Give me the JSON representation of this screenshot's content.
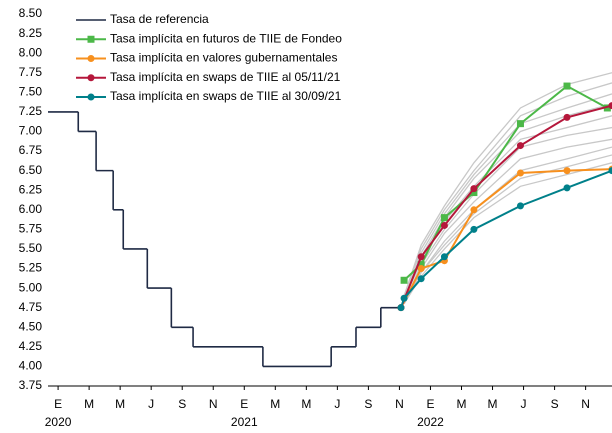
{
  "chart_data": {
    "type": "line",
    "legend_position": "upper left",
    "xlim": [
      -0.65,
      35.7
    ],
    "ylim": [
      3.75,
      8.5
    ],
    "yticks": [
      {
        "value": 3.75,
        "label": "3.75"
      },
      {
        "value": 4.0,
        "label": "4.00"
      },
      {
        "value": 4.25,
        "label": "4.25"
      },
      {
        "value": 4.5,
        "label": "4.50"
      },
      {
        "value": 4.75,
        "label": "4.75"
      },
      {
        "value": 5.0,
        "label": "5.00"
      },
      {
        "value": 5.25,
        "label": "5.25"
      },
      {
        "value": 5.5,
        "label": "5.50"
      },
      {
        "value": 5.75,
        "label": "5.75"
      },
      {
        "value": 6.0,
        "label": "6.00"
      },
      {
        "value": 6.25,
        "label": "6.25"
      },
      {
        "value": 6.5,
        "label": "6.50"
      },
      {
        "value": 6.75,
        "label": "6.75"
      },
      {
        "value": 7.0,
        "label": "7.00"
      },
      {
        "value": 7.25,
        "label": "7.25"
      },
      {
        "value": 7.5,
        "label": "7.50"
      },
      {
        "value": 7.75,
        "label": "7.75"
      },
      {
        "value": 8.0,
        "label": "8.00"
      },
      {
        "value": 8.25,
        "label": "8.25"
      },
      {
        "value": 8.5,
        "label": "8.50"
      }
    ],
    "xticks": [
      {
        "value": 0,
        "label": "E"
      },
      {
        "value": 2,
        "label": "M"
      },
      {
        "value": 4,
        "label": "M"
      },
      {
        "value": 6,
        "label": "J"
      },
      {
        "value": 8,
        "label": "S"
      },
      {
        "value": 10,
        "label": "N"
      },
      {
        "value": 12,
        "label": "E"
      },
      {
        "value": 14,
        "label": "M"
      },
      {
        "value": 16,
        "label": "M"
      },
      {
        "value": 18,
        "label": "J"
      },
      {
        "value": 20,
        "label": "S"
      },
      {
        "value": 22,
        "label": "N"
      },
      {
        "value": 24,
        "label": "E"
      },
      {
        "value": 26,
        "label": "M"
      },
      {
        "value": 28,
        "label": "M"
      },
      {
        "value": 30,
        "label": "J"
      },
      {
        "value": 32,
        "label": "S"
      },
      {
        "value": 34,
        "label": "N"
      }
    ],
    "xtick_years": [
      {
        "value": 0,
        "label": "2020"
      },
      {
        "value": 12,
        "label": "2021"
      },
      {
        "value": 24,
        "label": "2022"
      }
    ],
    "series": [
      {
        "name": "Tasa de referencia",
        "color": "#1f2a44",
        "step": "post",
        "x": [
          -0.65,
          1.3,
          2.45,
          3.55,
          4.2,
          5.75,
          7.3,
          8.7,
          13.2,
          17.6,
          19.2,
          20.8,
          22.1
        ],
        "values": [
          7.25,
          7.0,
          6.5,
          6.0,
          5.5,
          5.0,
          4.5,
          4.25,
          4.0,
          4.25,
          4.5,
          4.75,
          4.75
        ]
      },
      {
        "name": "Tasa implícita en futuros de TIIE de Fondeo",
        "color": "#4cb848",
        "marker": "square",
        "x": [
          22.3,
          23.4,
          24.9,
          26.8,
          29.8,
          32.8,
          35.4
        ],
        "values": [
          5.1,
          5.3,
          5.9,
          6.22,
          7.1,
          7.58,
          7.3
        ]
      },
      {
        "name": "Tasa implícita en valores gubernamentales",
        "color": "#f7901e",
        "marker": "circle",
        "x": [
          22.1,
          23.4,
          24.9,
          26.8,
          29.8,
          32.8,
          35.7
        ],
        "values": [
          4.75,
          5.25,
          5.35,
          6.0,
          6.47,
          6.5,
          6.52
        ]
      },
      {
        "name": "Tasa implícita en swaps de TIIE al 05/11/21",
        "color": "#b5173b",
        "marker": "circle",
        "x": [
          22.1,
          23.4,
          24.9,
          26.8,
          29.8,
          32.8,
          35.7
        ],
        "values": [
          4.75,
          5.4,
          5.8,
          6.27,
          6.82,
          7.18,
          7.33
        ]
      },
      {
        "name": "Tasa implícita en swaps de TIIE al 30/09/21",
        "color": "#00808a",
        "marker": "circle",
        "x": [
          22.1,
          22.3,
          23.4,
          24.9,
          26.8,
          29.8,
          32.8,
          35.7
        ],
        "values": [
          4.75,
          4.87,
          5.12,
          5.4,
          5.75,
          6.05,
          6.28,
          6.5
        ]
      }
    ],
    "fan_series": [
      {
        "color": "#c8c8c8",
        "x": [
          22.3,
          23.4,
          24.9,
          26.8,
          29.8,
          32.8,
          35.7
        ],
        "values": [
          4.9,
          5.55,
          6.05,
          6.6,
          7.3,
          7.6,
          7.75
        ]
      },
      {
        "color": "#c8c8c8",
        "x": [
          22.3,
          23.4,
          24.9,
          26.8,
          29.8,
          32.8,
          35.7
        ],
        "values": [
          4.9,
          5.5,
          6.0,
          6.5,
          7.2,
          7.45,
          7.62
        ]
      },
      {
        "color": "#c8c8c8",
        "x": [
          22.3,
          23.4,
          24.9,
          26.8,
          29.8,
          32.8,
          35.7
        ],
        "values": [
          4.85,
          5.45,
          5.95,
          6.45,
          7.1,
          7.3,
          7.48
        ]
      },
      {
        "color": "#c8c8c8",
        "x": [
          22.3,
          23.4,
          24.9,
          26.8,
          29.8,
          32.8,
          35.7
        ],
        "values": [
          4.85,
          5.4,
          5.9,
          6.4,
          7.0,
          7.2,
          7.35
        ]
      },
      {
        "color": "#c8c8c8",
        "x": [
          22.3,
          23.4,
          24.9,
          26.8,
          29.8,
          32.8,
          35.7
        ],
        "values": [
          4.85,
          5.35,
          5.85,
          6.3,
          6.9,
          7.05,
          7.2
        ]
      },
      {
        "color": "#c8c8c8",
        "x": [
          22.3,
          23.4,
          24.9,
          26.8,
          29.8,
          32.8,
          35.7
        ],
        "values": [
          4.8,
          5.3,
          5.75,
          6.2,
          6.8,
          6.95,
          7.05
        ]
      },
      {
        "color": "#c8c8c8",
        "x": [
          22.3,
          23.4,
          24.9,
          26.8,
          29.8,
          32.8,
          35.7
        ],
        "values": [
          4.8,
          5.25,
          5.7,
          6.1,
          6.65,
          6.8,
          6.9
        ]
      },
      {
        "color": "#c8c8c8",
        "x": [
          22.3,
          23.4,
          24.9,
          26.8,
          29.8,
          32.8,
          35.7
        ],
        "values": [
          4.8,
          5.2,
          5.6,
          6.0,
          6.5,
          6.65,
          6.8
        ]
      },
      {
        "color": "#c8c8c8",
        "x": [
          22.3,
          23.4,
          24.9,
          26.8,
          29.8,
          32.8,
          35.7
        ],
        "values": [
          4.8,
          5.2,
          5.55,
          5.95,
          6.4,
          6.55,
          6.7
        ]
      },
      {
        "color": "#c8c8c8",
        "x": [
          22.3,
          23.4,
          24.9,
          26.8,
          29.8,
          32.8,
          35.7
        ],
        "values": [
          4.8,
          5.15,
          5.5,
          5.9,
          6.3,
          6.45,
          6.6
        ]
      }
    ]
  }
}
